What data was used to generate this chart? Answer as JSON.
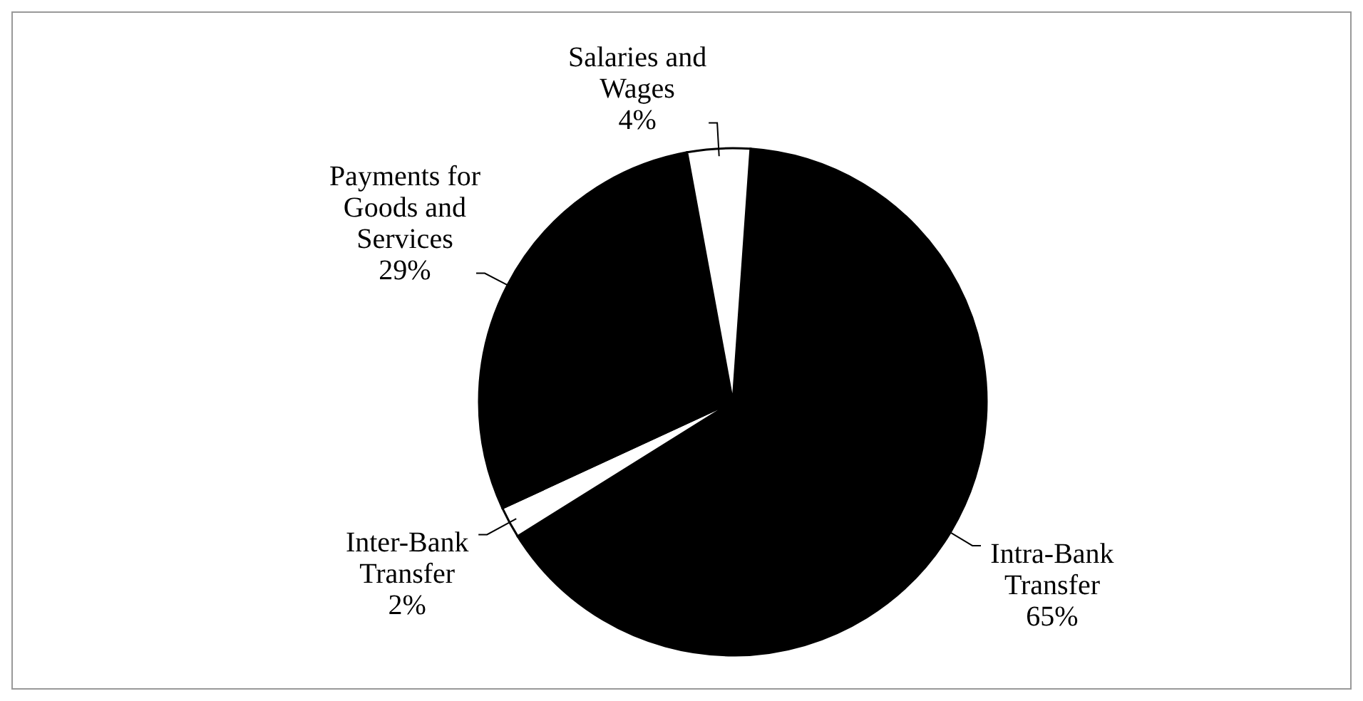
{
  "chart_data": {
    "type": "pie",
    "categories": [
      "Intra-Bank Transfer",
      "Inter-Bank Transfer",
      "Payments for Goods and Services",
      "Salaries and Wages"
    ],
    "values": [
      65,
      2,
      29,
      4
    ],
    "colors": [
      "#000000",
      "#ffffff",
      "#000000",
      "#ffffff"
    ],
    "value_labels": [
      "65%",
      "2%",
      "29%",
      "4%"
    ]
  }
}
